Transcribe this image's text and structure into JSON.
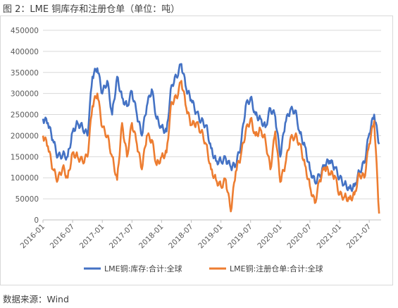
{
  "figure": {
    "title": "图 2：LME 铜库存和注册仓单（单位：吨）",
    "source": "数据来源：Wind"
  },
  "chart_data": {
    "type": "line",
    "title": "",
    "xlabel": "",
    "ylabel": "",
    "ylim": [
      0,
      450000
    ],
    "yticks": [
      0,
      50000,
      100000,
      150000,
      200000,
      250000,
      300000,
      350000,
      400000,
      450000
    ],
    "ytick_labels": [
      "0",
      "50000",
      "100000",
      "150000",
      "200000",
      "250000",
      "300000",
      "350000",
      "400000",
      "450000"
    ],
    "xticks": [
      "2016-01",
      "2016-07",
      "2017-01",
      "2017-07",
      "2018-01",
      "2018-07",
      "2019-01",
      "2019-07",
      "2020-01",
      "2020-07",
      "2021-01",
      "2021-07"
    ],
    "grid": "horizontal",
    "legend_position": "bottom",
    "colors": {
      "stock": "#4472c4",
      "warrants": "#ed7d31",
      "grid": "#d9d9d9",
      "axis": "#bfbfbf"
    },
    "series": [
      {
        "name": "LME铜:库存:合计:全球",
        "color": "#4472c4",
        "x": [
          "2016-01",
          "2016-02",
          "2016-03",
          "2016-04",
          "2016-05",
          "2016-06",
          "2016-07",
          "2016-08",
          "2016-09",
          "2016-10",
          "2016-11",
          "2016-12",
          "2017-01",
          "2017-02",
          "2017-03",
          "2017-04",
          "2017-05",
          "2017-06",
          "2017-07",
          "2017-08",
          "2017-09",
          "2017-10",
          "2017-11",
          "2017-12",
          "2018-01",
          "2018-02",
          "2018-03",
          "2018-04",
          "2018-05",
          "2018-06",
          "2018-07",
          "2018-08",
          "2018-09",
          "2018-10",
          "2018-11",
          "2018-12",
          "2019-01",
          "2019-02",
          "2019-03",
          "2019-04",
          "2019-05",
          "2019-06",
          "2019-07",
          "2019-08",
          "2019-09",
          "2019-10",
          "2019-11",
          "2019-12",
          "2020-01",
          "2020-02",
          "2020-03",
          "2020-04",
          "2020-05",
          "2020-06",
          "2020-07",
          "2020-08",
          "2020-09",
          "2020-10",
          "2020-11",
          "2020-12",
          "2021-01",
          "2021-02",
          "2021-03",
          "2021-04",
          "2021-05",
          "2021-06",
          "2021-07",
          "2021-08",
          "2021-09"
        ],
        "values": [
          240000,
          230000,
          190000,
          150000,
          155000,
          150000,
          210000,
          230000,
          220000,
          200000,
          340000,
          360000,
          300000,
          330000,
          250000,
          340000,
          290000,
          270000,
          305000,
          250000,
          200000,
          270000,
          310000,
          240000,
          220000,
          210000,
          320000,
          340000,
          370000,
          310000,
          285000,
          255000,
          235000,
          225000,
          170000,
          140000,
          140000,
          145000,
          125000,
          130000,
          175000,
          270000,
          290000,
          250000,
          240000,
          220000,
          265000,
          245000,
          150000,
          230000,
          260000,
          260000,
          205000,
          175000,
          120000,
          90000,
          105000,
          130000,
          140000,
          125000,
          100000,
          85000,
          75000,
          80000,
          115000,
          135000,
          205000,
          250000,
          180000
        ]
      },
      {
        "name": "LME铜:注册仓单:合计:全球",
        "color": "#ed7d31",
        "x": [
          "2016-01",
          "2016-02",
          "2016-03",
          "2016-04",
          "2016-05",
          "2016-06",
          "2016-07",
          "2016-08",
          "2016-09",
          "2016-10",
          "2016-11",
          "2016-12",
          "2017-01",
          "2017-02",
          "2017-03",
          "2017-04",
          "2017-05",
          "2017-06",
          "2017-07",
          "2017-08",
          "2017-09",
          "2017-10",
          "2017-11",
          "2017-12",
          "2018-01",
          "2018-02",
          "2018-03",
          "2018-04",
          "2018-05",
          "2018-06",
          "2018-07",
          "2018-08",
          "2018-09",
          "2018-10",
          "2018-11",
          "2018-12",
          "2019-01",
          "2019-02",
          "2019-03",
          "2019-04",
          "2019-05",
          "2019-06",
          "2019-07",
          "2019-08",
          "2019-09",
          "2019-10",
          "2019-11",
          "2019-12",
          "2020-01",
          "2020-02",
          "2020-03",
          "2020-04",
          "2020-05",
          "2020-06",
          "2020-07",
          "2020-08",
          "2020-09",
          "2020-10",
          "2020-11",
          "2020-12",
          "2021-01",
          "2021-02",
          "2021-03",
          "2021-04",
          "2021-05",
          "2021-06",
          "2021-07",
          "2021-08",
          "2021-09"
        ],
        "values": [
          200000,
          175000,
          120000,
          95000,
          125000,
          100000,
          160000,
          150000,
          140000,
          150000,
          270000,
          300000,
          220000,
          200000,
          150000,
          95000,
          230000,
          150000,
          230000,
          180000,
          120000,
          200000,
          190000,
          130000,
          150000,
          160000,
          280000,
          290000,
          330000,
          265000,
          225000,
          230000,
          210000,
          180000,
          120000,
          95000,
          80000,
          95000,
          20000,
          115000,
          150000,
          210000,
          240000,
          200000,
          215000,
          190000,
          120000,
          210000,
          90000,
          130000,
          190000,
          200000,
          180000,
          130000,
          80000,
          40000,
          95000,
          125000,
          110000,
          105000,
          60000,
          55000,
          50000,
          60000,
          110000,
          100000,
          180000,
          235000,
          15000
        ]
      }
    ]
  }
}
